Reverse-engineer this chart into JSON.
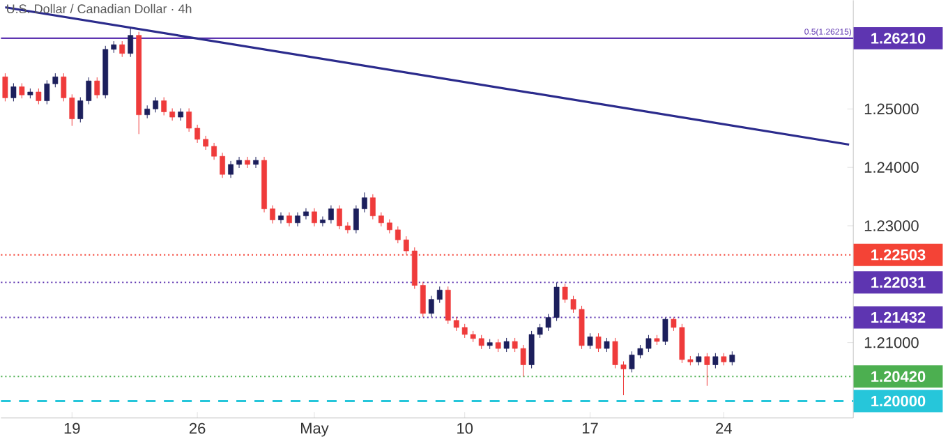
{
  "chart_data": {
    "type": "candlestick",
    "title": "U.S. Dollar / Canadian Dollar · 4h",
    "categories": [
      null,
      null,
      null,
      null,
      null,
      null,
      null,
      null,
      "19",
      null,
      null,
      null,
      null,
      null,
      null,
      null,
      null,
      null,
      null,
      null,
      null,
      null,
      null,
      "26",
      null,
      null,
      null,
      null,
      null,
      null,
      null,
      null,
      null,
      null,
      null,
      null,
      null,
      "May",
      null,
      null,
      null,
      null,
      null,
      null,
      null,
      null,
      null,
      null,
      null,
      null,
      null,
      null,
      null,
      null,
      null,
      "10",
      null,
      null,
      null,
      null,
      null,
      null,
      null,
      null,
      null,
      null,
      null,
      null,
      null,
      null,
      "17",
      null,
      null,
      null,
      null,
      null,
      null,
      null,
      null,
      null,
      null,
      null,
      null,
      null,
      null,
      null,
      "24",
      null,
      null,
      null,
      null,
      null,
      null,
      null,
      null,
      null,
      null,
      null,
      null,
      null,
      null,
      null
    ],
    "ohlc": [
      [
        1.2555,
        1.2561,
        1.2513,
        1.2519
      ],
      [
        1.2519,
        1.2544,
        1.2513,
        1.2538
      ],
      [
        1.2538,
        1.2544,
        1.2518,
        1.2524
      ],
      [
        1.2524,
        1.2535,
        1.2518,
        1.2529
      ],
      [
        1.2529,
        1.2535,
        1.2508,
        1.2514
      ],
      [
        1.2514,
        1.2549,
        1.2508,
        1.2543
      ],
      [
        1.2543,
        1.2561,
        1.2537,
        1.2555
      ],
      [
        1.2555,
        1.2561,
        1.2513,
        1.2519
      ],
      [
        1.2519,
        1.2525,
        1.2471,
        1.2483
      ],
      [
        1.2483,
        1.252,
        1.2477,
        1.2514
      ],
      [
        1.2514,
        1.2554,
        1.2508,
        1.2548
      ],
      [
        1.2548,
        1.2554,
        1.2518,
        1.2524
      ],
      [
        1.2524,
        1.2608,
        1.2518,
        1.2602
      ],
      [
        1.2602,
        1.2616,
        1.2596,
        1.261
      ],
      [
        1.261,
        1.2616,
        1.2589,
        1.2595
      ],
      [
        1.2595,
        1.2638,
        1.2589,
        1.2626
      ],
      [
        1.2626,
        1.2632,
        1.2457,
        1.249
      ],
      [
        1.249,
        1.2506,
        1.2484,
        1.25
      ],
      [
        1.25,
        1.252,
        1.2494,
        1.2514
      ],
      [
        1.2514,
        1.252,
        1.2489,
        1.2495
      ],
      [
        1.2495,
        1.2501,
        1.248,
        1.2486
      ],
      [
        1.2486,
        1.2501,
        1.248,
        1.2495
      ],
      [
        1.2495,
        1.2501,
        1.2461,
        1.2467
      ],
      [
        1.2467,
        1.2473,
        1.2442,
        1.2448
      ],
      [
        1.2448,
        1.2454,
        1.243,
        1.2436
      ],
      [
        1.2436,
        1.2442,
        1.2413,
        1.2419
      ],
      [
        1.2419,
        1.2425,
        1.2382,
        1.2388
      ],
      [
        1.2388,
        1.2411,
        1.2382,
        1.2405
      ],
      [
        1.2405,
        1.2418,
        1.2399,
        1.2412
      ],
      [
        1.2412,
        1.2418,
        1.2399,
        1.2405
      ],
      [
        1.2405,
        1.2418,
        1.2399,
        1.2412
      ],
      [
        1.2412,
        1.2418,
        1.2323,
        1.2329
      ],
      [
        1.2329,
        1.2335,
        1.2304,
        1.231
      ],
      [
        1.231,
        1.2323,
        1.2304,
        1.2317
      ],
      [
        1.2317,
        1.2323,
        1.2299,
        1.2305
      ],
      [
        1.2305,
        1.2323,
        1.2299,
        1.2317
      ],
      [
        1.2317,
        1.233,
        1.2311,
        1.2324
      ],
      [
        1.2324,
        1.233,
        1.2299,
        1.2305
      ],
      [
        1.2305,
        1.2316,
        1.2299,
        1.231
      ],
      [
        1.231,
        1.2335,
        1.2304,
        1.2329
      ],
      [
        1.2329,
        1.2335,
        1.2294,
        1.23
      ],
      [
        1.23,
        1.2306,
        1.2287,
        1.2293
      ],
      [
        1.2293,
        1.2335,
        1.2287,
        1.2329
      ],
      [
        1.2329,
        1.2357,
        1.2323,
        1.2348
      ],
      [
        1.2348,
        1.2354,
        1.2311,
        1.2317
      ],
      [
        1.2317,
        1.2323,
        1.2299,
        1.2305
      ],
      [
        1.2305,
        1.2311,
        1.2287,
        1.2293
      ],
      [
        1.2293,
        1.2299,
        1.227,
        1.2276
      ],
      [
        1.2276,
        1.2282,
        1.2251,
        1.2257
      ],
      [
        1.2257,
        1.2263,
        1.2192,
        1.2198
      ],
      [
        1.2198,
        1.2204,
        1.2144,
        1.215
      ],
      [
        1.215,
        1.218,
        1.2144,
        1.2174
      ],
      [
        1.2174,
        1.2196,
        1.2168,
        1.219
      ],
      [
        1.219,
        1.2196,
        1.2132,
        1.2138
      ],
      [
        1.2138,
        1.2144,
        1.212,
        1.2126
      ],
      [
        1.2126,
        1.2132,
        1.2108,
        1.2114
      ],
      [
        1.2114,
        1.212,
        1.2101,
        1.2107
      ],
      [
        1.2107,
        1.2113,
        1.2089,
        1.2095
      ],
      [
        1.2095,
        1.2106,
        1.2089,
        1.21
      ],
      [
        1.21,
        1.2106,
        1.2084,
        1.209
      ],
      [
        1.209,
        1.2108,
        1.2084,
        1.2102
      ],
      [
        1.2102,
        1.2108,
        1.2084,
        1.209
      ],
      [
        1.209,
        1.2096,
        1.2042,
        1.2062
      ],
      [
        1.2062,
        1.212,
        1.2056,
        1.2114
      ],
      [
        1.2114,
        1.2132,
        1.2108,
        1.2126
      ],
      [
        1.2126,
        1.2149,
        1.212,
        1.2143
      ],
      [
        1.2143,
        1.2203,
        1.2137,
        1.2195
      ],
      [
        1.2195,
        1.2201,
        1.2168,
        1.2174
      ],
      [
        1.2174,
        1.218,
        1.2151,
        1.2157
      ],
      [
        1.2157,
        1.2163,
        1.2089,
        1.2095
      ],
      [
        1.2095,
        1.2116,
        1.2089,
        1.211
      ],
      [
        1.211,
        1.2116,
        1.2084,
        1.209
      ],
      [
        1.209,
        1.2108,
        1.2084,
        1.2102
      ],
      [
        1.2102,
        1.2108,
        1.2056,
        1.2062
      ],
      [
        1.2062,
        1.2068,
        1.201,
        1.2055
      ],
      [
        1.2055,
        1.2085,
        1.2049,
        1.2079
      ],
      [
        1.2079,
        1.2096,
        1.2073,
        1.209
      ],
      [
        1.209,
        1.2113,
        1.2084,
        1.2107
      ],
      [
        1.2107,
        1.2113,
        1.2096,
        1.2102
      ],
      [
        1.2102,
        1.2143,
        1.2096,
        1.214
      ],
      [
        1.214,
        1.2143,
        1.212,
        1.2126
      ],
      [
        1.2126,
        1.2132,
        1.2065,
        1.2071
      ],
      [
        1.2071,
        1.2077,
        1.2061,
        1.2067
      ],
      [
        1.2067,
        1.2082,
        1.2061,
        1.2076
      ],
      [
        1.2076,
        1.2082,
        1.2026,
        1.2062
      ],
      [
        1.2062,
        1.2082,
        1.2056,
        1.2076
      ],
      [
        1.2076,
        1.2082,
        1.2061,
        1.2067
      ],
      [
        1.2067,
        1.2085,
        1.2061,
        1.2079
      ],
      null,
      null,
      null,
      null,
      null,
      null,
      null,
      null,
      null,
      null,
      null,
      null,
      null,
      null
    ],
    "colors": [
      "#ef3b3b",
      "#1c1f5c",
      "#ef3b3b",
      "#1c1f5c",
      "#ef3b3b",
      "#1c1f5c",
      "#1c1f5c",
      "#ef3b3b",
      "#ef3b3b",
      "#1c1f5c",
      "#1c1f5c",
      "#ef3b3b",
      "#1c1f5c",
      "#1c1f5c",
      "#ef3b3b",
      "#1c1f5c",
      "#ef3b3b",
      "#1c1f5c",
      "#1c1f5c",
      "#ef3b3b",
      "#ef3b3b",
      "#1c1f5c",
      "#ef3b3b",
      "#ef3b3b",
      "#ef3b3b",
      "#ef3b3b",
      "#ef3b3b",
      "#1c1f5c",
      "#1c1f5c",
      "#ef3b3b",
      "#1c1f5c",
      "#ef3b3b",
      "#ef3b3b",
      "#1c1f5c",
      "#ef3b3b",
      "#1c1f5c",
      "#1c1f5c",
      "#ef3b3b",
      "#1c1f5c",
      "#1c1f5c",
      "#ef3b3b",
      "#ef3b3b",
      "#1c1f5c",
      "#1c1f5c",
      "#ef3b3b",
      "#ef3b3b",
      "#ef3b3b",
      "#ef3b3b",
      "#ef3b3b",
      "#ef3b3b",
      "#ef3b3b",
      "#1c1f5c",
      "#1c1f5c",
      "#ef3b3b",
      "#ef3b3b",
      "#ef3b3b",
      "#ef3b3b",
      "#ef3b3b",
      "#1c1f5c",
      "#ef3b3b",
      "#1c1f5c",
      "#ef3b3b",
      "#ef3b3b",
      "#1c1f5c",
      "#1c1f5c",
      "#1c1f5c",
      "#1c1f5c",
      "#ef3b3b",
      "#ef3b3b",
      "#ef3b3b",
      "#1c1f5c",
      "#ef3b3b",
      "#1c1f5c",
      "#ef3b3b",
      "#ef3b3b",
      "#1c1f5c",
      "#1c1f5c",
      "#1c1f5c",
      "#ef3b3b",
      "#1c1f5c",
      "#ef3b3b",
      "#ef3b3b",
      "#ef3b3b",
      "#1c1f5c",
      "#ef3b3b",
      "#1c1f5c",
      "#ef3b3b",
      "#1c1f5c",
      null,
      null,
      null,
      null,
      null,
      null,
      null,
      null,
      null,
      null,
      null,
      null,
      null,
      null
    ],
    "series": [
      {
        "type": "line",
        "values": [
          1.2674,
          null,
          null,
          null,
          null,
          null,
          null,
          null,
          null,
          null,
          null,
          null,
          null,
          null,
          null,
          null,
          null,
          null,
          null,
          null,
          null,
          null,
          null,
          null,
          null,
          null,
          null,
          null,
          null,
          null,
          null,
          null,
          null,
          null,
          null,
          null,
          null,
          null,
          null,
          null,
          null,
          null,
          null,
          null,
          null,
          null,
          null,
          null,
          null,
          null,
          null,
          null,
          null,
          null,
          null,
          null,
          null,
          null,
          null,
          null,
          null,
          null,
          null,
          null,
          null,
          null,
          null,
          null,
          null,
          null,
          null,
          null,
          null,
          null,
          null,
          null,
          null,
          null,
          null,
          null,
          null,
          null,
          null,
          null,
          null,
          null,
          null,
          null,
          null,
          null,
          null,
          null,
          null,
          null,
          null,
          null,
          null,
          null,
          null,
          null,
          null,
          1.2439
        ],
        "color": "#2b2b8c"
      }
    ],
    "ylim": [
      1.1971,
      1.2686
    ],
    "yticks": [
      {
        "value": 1.21,
        "label": "1.21000"
      },
      {
        "value": 1.23,
        "label": "1.23000"
      },
      {
        "value": 1.24,
        "label": "1.24000"
      },
      {
        "value": 1.25,
        "label": "1.25000"
      }
    ],
    "ref_lines": [
      {
        "axis": "y",
        "value": 1.2621,
        "label": "1.26210",
        "color": "#5e35b1",
        "line_style": "solid"
      },
      {
        "axis": "y",
        "value": 1.22503,
        "label": "1.22503",
        "color": "#f44336",
        "line_style": "dotted"
      },
      {
        "axis": "y",
        "value": 1.22031,
        "label": "1.22031",
        "color": "#5e35b1",
        "line_style": "dotted"
      },
      {
        "axis": "y",
        "value": 1.21432,
        "label": "1.21432",
        "color": "#5e35b1",
        "line_style": "dotted"
      },
      {
        "axis": "y",
        "value": 1.2042,
        "label": "1.20420",
        "color": "#4caf50",
        "line_style": "dotted"
      },
      {
        "axis": "y",
        "value": 1.2,
        "label": "1.20000",
        "color": "#26c6da",
        "line_style": "dashed"
      }
    ],
    "annotations": [
      {
        "text": "0.5(1.26215)",
        "y": 1.26215
      }
    ]
  }
}
